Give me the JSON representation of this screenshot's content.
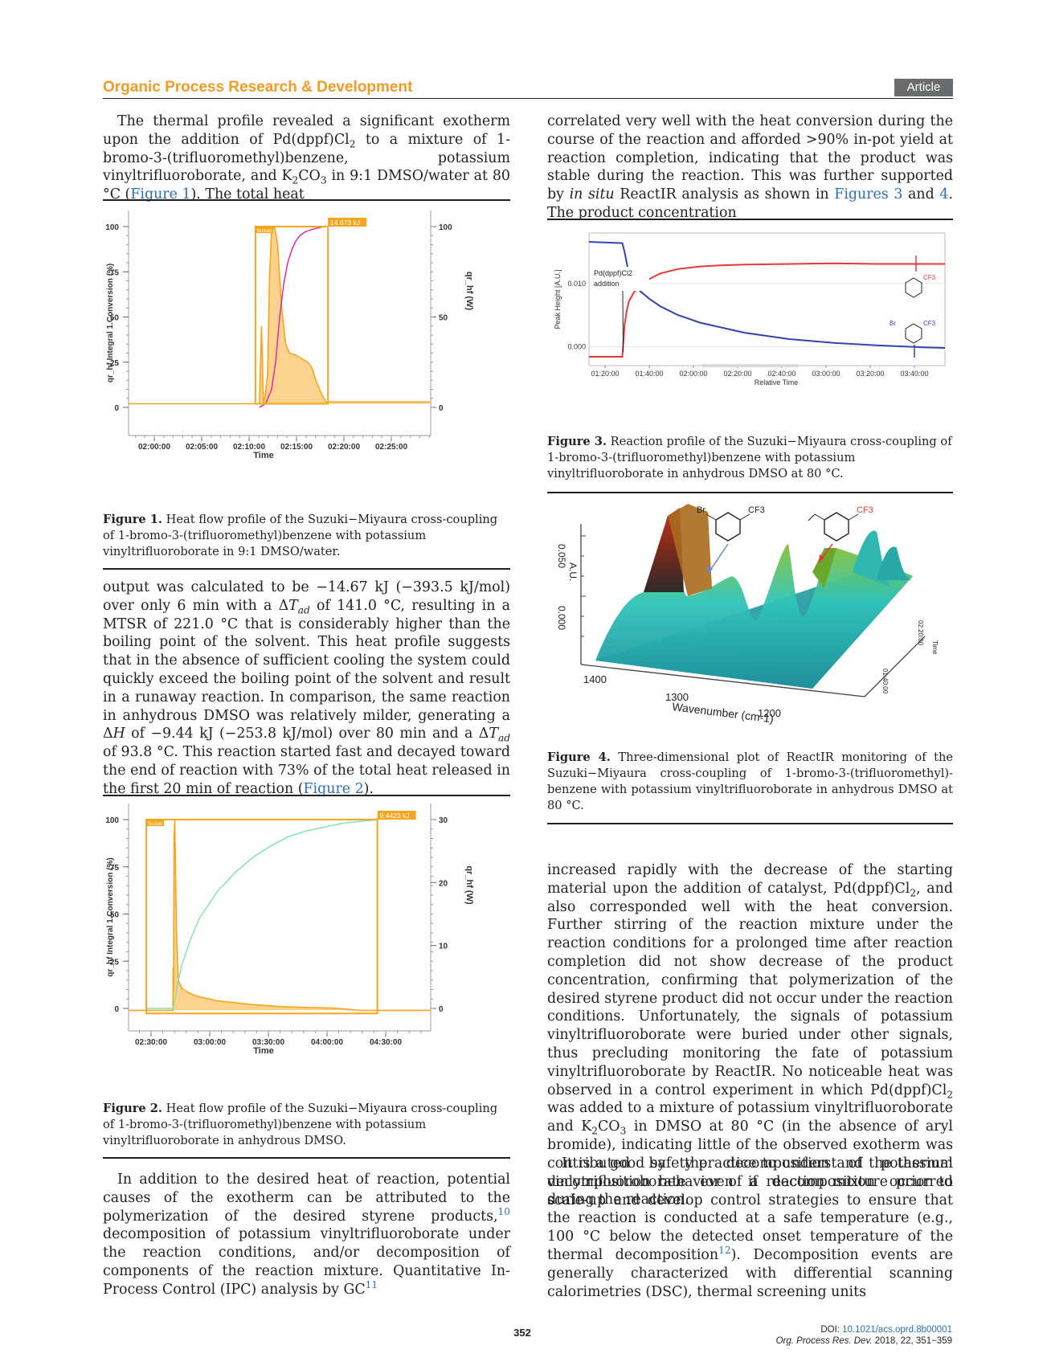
{
  "header": {
    "journal": "Organic Process Research & Development",
    "badge": "Article"
  },
  "left": {
    "para1": {
      "a": "The thermal profile revealed a significant exotherm upon the addition of Pd(dppf)Cl",
      "a_sub": "2",
      "b": " to a mixture of 1-bromo-3-(trifluoromethyl)benzene, potassium vinyltrifluoroborate, and K",
      "b_sub": "2",
      "c": "CO",
      "c_sub": "3",
      "d": " in 9:1 DMSO/water at 80 °C (",
      "link": "Figure 1",
      "e": "). The total heat"
    },
    "para2": {
      "a": "output was calculated to be −14.67 kJ (−393.5 kJ/mol) over only 6 min with a Δ",
      "t1": "T",
      "t1_sub": "ad",
      "b": " of 141.0 °C, resulting in a MTSR of 221.0 °C that is considerably higher than the boiling point of the solvent. This heat profile suggests that in the absence of sufficient cooling the system could quickly exceed the boiling point of the solvent and result in a runaway reaction. In comparison, the same reaction in anhydrous DMSO was relatively milder, generating a Δ",
      "h": "H",
      "c": " of −9.44 kJ (−253.8 kJ/mol) over 80 min and a Δ",
      "t2": "T",
      "t2_sub": "ad",
      "d": " of 93.8 °C. This reaction started fast and decayed toward the end of reaction with 73% of the total heat released in the first 20 min of reaction (",
      "link": "Figure 2",
      "e": ")."
    },
    "para3": {
      "a": "In addition to the desired heat of reaction, potential causes of the exotherm can be attributed to the polymerization of the desired styrene products,",
      "ref1": "10",
      "b": " decomposition of potassium vinyltrifluoroborate under the reaction conditions, and/or decomposition of components of the reaction mixture. Quantitative In-Process Control (IPC) analysis by GC",
      "ref2": "11"
    }
  },
  "right": {
    "para1": {
      "a": "correlated very well with the heat conversion during the course of the reaction and afforded >90% in-pot yield at reaction completion, indicating that the product was stable during the reaction. This was further supported by ",
      "insitu": "in situ",
      "b": " ReactIR analysis as shown in ",
      "link1": "Figures 3",
      "c": " and ",
      "link2": "4",
      "d": ". The product concentration"
    },
    "para2": {
      "a": "increased rapidly with the decrease of the starting material upon the addition of catalyst, Pd(dppf)Cl",
      "a_sub": "2",
      "b": ", and also corresponded well with the heat conversion. Further stirring of the reaction mixture under the reaction conditions for a prolonged time after reaction completion did not show decrease of the product concentration, confirming that polymerization of the desired styrene product did not occur under the reaction conditions. Unfortunately, the signals of potassium vinyltrifluoroborate were buried under other signals, thus precluding monitoring the fate of potassium vinyltrifluoroborate by ReactIR. No noticeable heat was observed in a control experiment in which Pd(dppf)Cl",
      "b_sub": "2",
      "c": " was added to a mixture of potassium vinyltrifluoroborate and K",
      "c_sub": "2",
      "d": "CO",
      "d_sub": "3",
      "e": " in DMSO at 80 °C (in the absence of aryl bromide), indicating little of the observed exotherm was contributed by the decomposition of potassium vinlytrifluoroborate even if decomposition occurred during the reaction."
    },
    "para3": {
      "a": "It is a good safety practice to understand the thermal decomposition behavior of a reaction mixture prior to scale-up and develop control strategies to ensure that the reaction is conducted at a safe temperature (e.g., 100 °C below the detected onset temperature of the thermal decomposition",
      "ref": "12",
      "b": "). Decomposition events are generally characterized with differential scanning calorimetries (DSC), thermal screening units"
    }
  },
  "captions": {
    "fig1": {
      "label": "Figure 1.",
      "text": " Heat flow profile of the Suzuki−Miyaura cross-coupling of 1-bromo-3-(trifluoromethyl)benzene with potassium vinyltrifluoroborate in 9:1 DMSO/water."
    },
    "fig2": {
      "label": "Figure 2.",
      "text": " Heat flow profile of the Suzuki−Miyaura cross-coupling of 1-bromo-3-(trifluoromethyl)benzene with potassium vinyltrifluoroborate in anhydrous DMSO."
    },
    "fig3": {
      "label": "Figure 3.",
      "text": " Reaction profile of the Suzuki−Miyaura cross-coupling of 1-bromo-3-(trifluoromethyl)benzene with potassium vinyltrifluoroborate in anhydrous DMSO at 80 °C."
    },
    "fig4": {
      "label": "Figure 4.",
      "text": " Three-dimensional plot of ReactIR monitoring of the Suzuki−Miyaura cross-coupling of 1-bromo-3-(trifluoromethyl)-benzene with potassium vinyltrifluoroborate in anhydrous DMSO at 80 °C."
    }
  },
  "figure4": {
    "yticks": [
      "0.050",
      "0.000"
    ],
    "ylabel": "A.U.",
    "xticks": [
      "1400",
      "1300",
      "1200"
    ],
    "xlabel": "Wavenumber (cm-1)",
    "zticks": [
      "02:20:00",
      "01:40:00"
    ],
    "zlabel": "Time",
    "struct1": {
      "br": "Br",
      "cf3": "CF3"
    },
    "struct2": {
      "cf3": "CF3"
    }
  },
  "footer": {
    "page": "352",
    "doi_prefix": "DOI: ",
    "doi_link": "10.1021/acs.oprd.8b00001",
    "citation_journal": "Org. Process Res. Dev.",
    "citation_rest": " 2018, 22, 351−359"
  },
  "chart_data": [
    {
      "id": "figure1",
      "type": "line",
      "xlabel": "Time",
      "ylabel": "qr_hf Integral 1.Conversion (%)",
      "y2label": "qr_hf (W)",
      "x_ticks": [
        "02:00:00",
        "02:05:00",
        "02:10:00",
        "02:15:00",
        "02:20:00",
        "02:25:00"
      ],
      "y_ticks": [
        0,
        25,
        50,
        75,
        100
      ],
      "y2_ticks": [
        0,
        50,
        100
      ],
      "ylim": [
        0,
        100
      ],
      "y2lim": [
        0,
        100
      ],
      "xlim": [
        -2,
        28
      ],
      "annotation_label": "14.673 kJ",
      "marker_label": "Suzuki",
      "series": [
        {
          "name": "qr_hf",
          "color": "#f7a51e",
          "axis": "y2",
          "fill": true,
          "x": [
            -2,
            10.8,
            11.0,
            11.2,
            11.4,
            11.6,
            11.8,
            12.0,
            12.2,
            12.5,
            12.8,
            13.2,
            13.6,
            14.0,
            14.6,
            15.2,
            15.8,
            16.2,
            16.6,
            17.2,
            17.6,
            28
          ],
          "y": [
            2,
            2,
            2,
            45,
            2,
            8,
            18,
            73,
            98,
            100,
            90,
            55,
            35,
            30,
            29,
            27,
            25,
            22,
            15,
            7,
            3,
            3
          ]
        },
        {
          "name": "qr_hf Integral 1.Conversion (%)",
          "color": "#e41f9c",
          "axis": "y",
          "x": [
            11.0,
            11.6,
            12.2,
            12.6,
            13.0,
            13.4,
            13.8,
            14.2,
            14.6,
            15.0,
            15.5,
            16.0,
            16.6,
            17.4
          ],
          "y": [
            0,
            2,
            10,
            25,
            50,
            68,
            80,
            87,
            92,
            95,
            97,
            98,
            99,
            100
          ]
        }
      ]
    },
    {
      "id": "figure2",
      "type": "line",
      "xlabel": "Time",
      "ylabel": "qr_hf Integral 1.Conversion (%)",
      "y2label": "qr_hf (W)",
      "x_ticks": [
        "02:30:00",
        "03:00:00",
        "03:30:00",
        "04:00:00",
        "04:30:00"
      ],
      "y_ticks": [
        0,
        25,
        50,
        75,
        100
      ],
      "y2_ticks": [
        0,
        10,
        20,
        30
      ],
      "ylim": [
        0,
        100
      ],
      "y2lim": [
        0,
        30
      ],
      "xlim": [
        -10,
        160
      ],
      "annotation_label": "9.4423 kJ",
      "marker_label": "Suzuki",
      "series": [
        {
          "name": "qr_hf",
          "color": "#f7a51e",
          "axis": "y2",
          "fill": true,
          "x": [
            -10,
            15,
            15.1,
            15.3,
            15.6,
            16,
            17,
            18,
            20,
            23,
            27,
            32,
            40,
            50,
            60,
            75,
            90,
            105,
            120,
            160
          ],
          "y": [
            -0.3,
            -0.3,
            6.5,
            2.5,
            27,
            30,
            12,
            4.5,
            3.2,
            2.6,
            2.1,
            1.7,
            1.2,
            0.9,
            0.6,
            0.3,
            0.15,
            0.05,
            -0.3,
            -0.3
          ]
        },
        {
          "name": "qr_hf Integral 1.Conversion (%)",
          "color": "#7ce5a9",
          "axis": "y",
          "x": [
            0,
            15,
            16,
            18,
            20,
            25,
            30,
            40,
            50,
            60,
            70,
            80,
            90,
            100,
            110,
            120,
            130
          ],
          "y": [
            0,
            0,
            4,
            15,
            23,
            37,
            48,
            62,
            72,
            80,
            86,
            91,
            94,
            96,
            98,
            99,
            100
          ]
        }
      ]
    },
    {
      "id": "figure3",
      "type": "line",
      "xlabel": "Relative Time",
      "ylabel": "Peak Height [A.U.]",
      "x_ticks": [
        "01:20:00",
        "01:40:00",
        "02:00:00",
        "02:20:00",
        "02:40:00",
        "03:00:00",
        "03:20:00",
        "03:40:00"
      ],
      "y_ticks": [
        "0.000",
        "0.010"
      ],
      "annotation": "Pd(dppf)Cl2 addition",
      "series": [
        {
          "name": "product",
          "color": "#e53935",
          "x": [
            70,
            85,
            86,
            87,
            88,
            90,
            93,
            97,
            102,
            110,
            120,
            130,
            140,
            160,
            180,
            200,
            220,
            230
          ],
          "y": [
            -0.0016,
            -0.0016,
            0.0035,
            0.0058,
            0.0072,
            0.0085,
            0.0097,
            0.0107,
            0.0116,
            0.0123,
            0.0127,
            0.0129,
            0.013,
            0.0131,
            0.0132,
            0.0131,
            0.0131,
            0.0131
          ]
        },
        {
          "name": "starting material",
          "color": "#3344aa",
          "x": [
            70,
            85,
            86,
            87,
            88,
            90,
            93,
            97,
            102,
            110,
            120,
            130,
            140,
            160,
            180,
            200,
            220,
            230
          ],
          "y": [
            0.0166,
            0.0164,
            0.015,
            0.0132,
            0.0114,
            0.0102,
            0.0088,
            0.0076,
            0.0064,
            0.005,
            0.0038,
            0.003,
            0.0022,
            0.0012,
            0.0006,
            0.0002,
            -0.0001,
            -0.0002
          ]
        }
      ]
    }
  ]
}
